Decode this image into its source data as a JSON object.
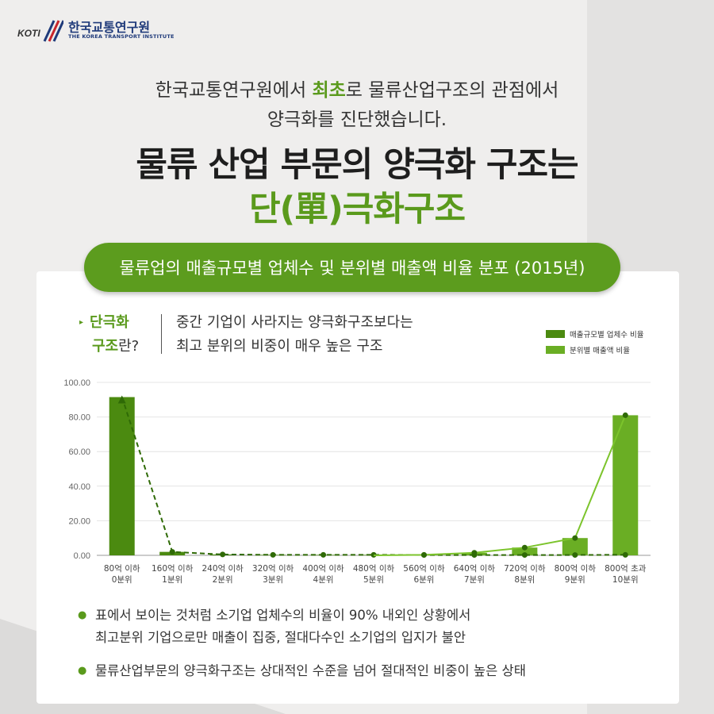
{
  "logo": {
    "mark": "KOTI",
    "kr": "한국교통연구원",
    "en": "THE KOREA TRANSPORT INSTITUTE"
  },
  "intro": {
    "line1_pre": "한국교통연구원에서 ",
    "line1_highlight": "최초",
    "line1_post": "로 물류산업구조의 관점에서",
    "line2": "양극화를 진단했습니다."
  },
  "headline": {
    "line1": "물류 산업 부문의 양극화 구조는",
    "line2": "단(單)극화구조"
  },
  "pill": "물류업의 매출규모별 업체수 및 분위별 매출액 비율 분포 (2015년)",
  "definition": {
    "q1": "단극화",
    "q2_green": "구조",
    "q2_rest": "란?",
    "a1": "중간 기업이 사라지는 양극화구조보다는",
    "a2": "최고 분위의 비중이 매우 높은 구조"
  },
  "colors": {
    "accent": "#5a9a1c",
    "bar_dark": "#4b8a10",
    "bar_light": "#6aae24"
  },
  "chart_data": {
    "type": "bar",
    "categories": [
      "80억 이하\n0분위",
      "160억 이하\n1분위",
      "240억 이하\n2분위",
      "320억 이하\n3분위",
      "400억 이하\n4분위",
      "480억 이하\n5분위",
      "560억 이하\n6분위",
      "640억 이하\n7분위",
      "720억 이하\n8분위",
      "800억 이하\n9분위",
      "800억 초과\n10분위"
    ],
    "series": [
      {
        "name": "매출규모별 업체수 비율",
        "values": [
          91.5,
          2.0,
          0.5,
          0.3,
          0.3,
          0.3,
          0.2,
          0.2,
          0.2,
          0.2,
          0.3
        ]
      },
      {
        "name": "분위별 매출액 비율",
        "values": [
          0,
          0,
          0,
          0,
          0,
          0,
          0.3,
          1.5,
          4.5,
          10.0,
          81.0
        ]
      }
    ],
    "yticks": [
      "100.00",
      "80.00",
      "60.00",
      "40.00",
      "20.00",
      "0.00"
    ],
    "ylim": [
      0,
      100
    ],
    "grid": true,
    "legend_position": "top-right"
  },
  "bullets": [
    {
      "line1": "표에서 보이는 것처럼 소기업 업체수의 비율이 90% 내외인 상황에서",
      "line2": "최고분위 기업으로만 매출이 집중, 절대다수인 소기업의 입지가 불안"
    },
    {
      "line1": "물류산업부문의 양극화구조는 상대적인 수준을 넘어 절대적인 비중이 높은 상태",
      "line2": ""
    }
  ]
}
